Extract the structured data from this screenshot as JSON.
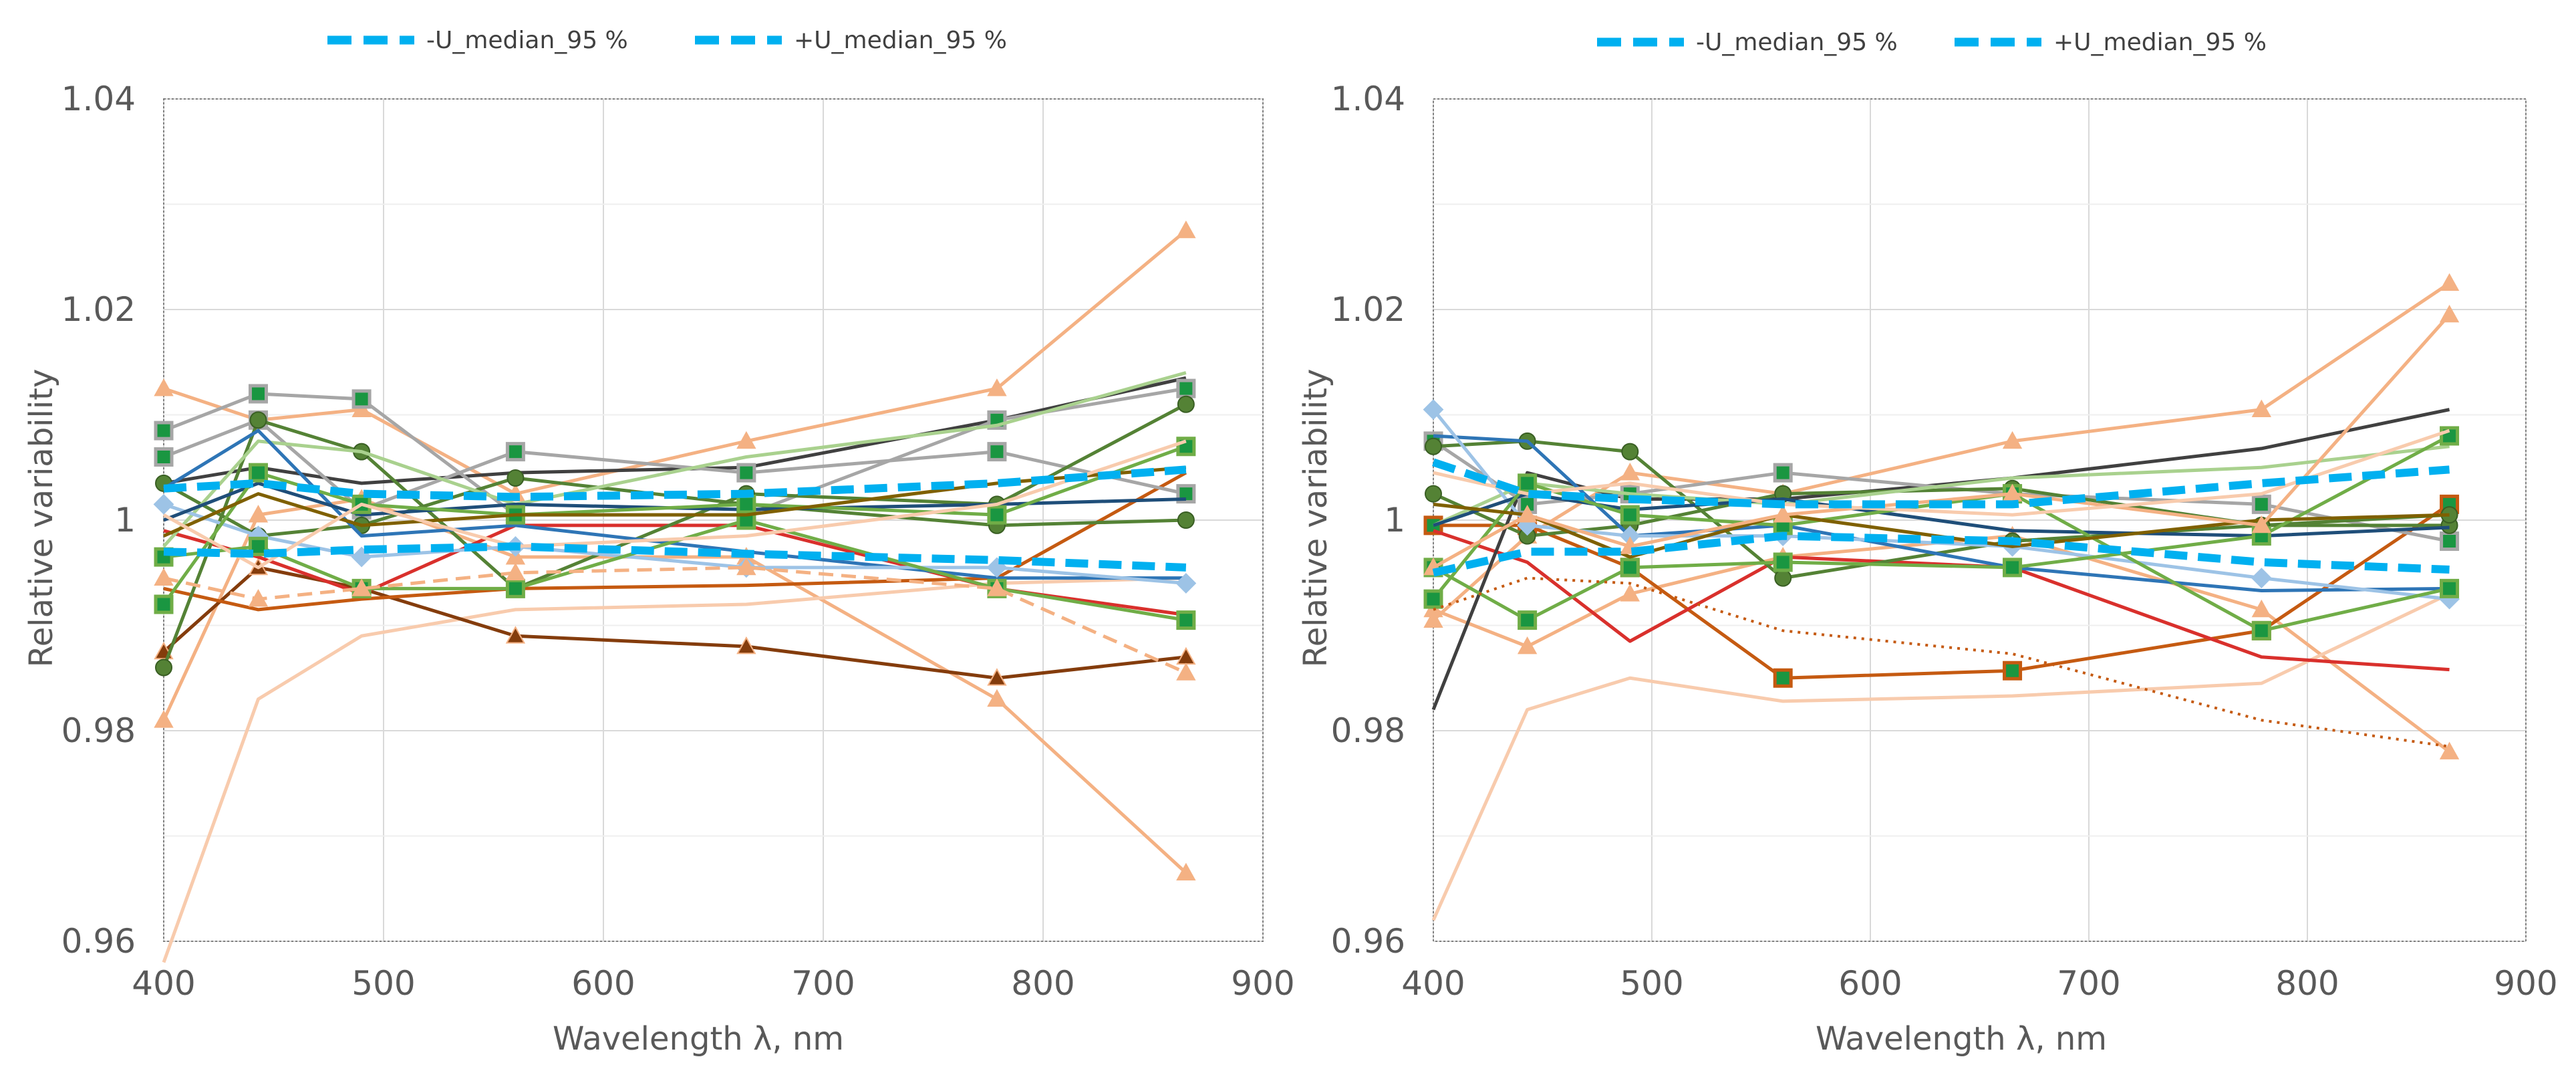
{
  "colors": {
    "median": "#00b0f0",
    "grid": "#d9d9d9",
    "frame": "#7f7f7f",
    "palette": [
      "#f4b183",
      "#f8cbad",
      "#c55a11",
      "#843c0c",
      "#d9302c",
      "#404040",
      "#a6a6a6",
      "#548235",
      "#a9d18e",
      "#2e75b6",
      "#9dc3e6",
      "#1f4e79",
      "#ed7d31",
      "#70ad47",
      "#7f6000",
      "#8c8c8c"
    ]
  },
  "chart_data": [
    {
      "type": "line",
      "title": "",
      "xlabel": "Wavelength λ, nm",
      "ylabel": "Relative variability",
      "xlim": [
        400,
        900
      ],
      "ylim": [
        0.96,
        1.04
      ],
      "xticks": [
        400,
        500,
        600,
        700,
        800,
        900
      ],
      "yticks": [
        0.96,
        0.98,
        1,
        1.02,
        1.04
      ],
      "xtick_labels": [
        "400",
        "500",
        "600",
        "700",
        "800",
        "900"
      ],
      "ytick_labels": [
        "0.96",
        "0.98",
        "1",
        "1.02",
        "1.04"
      ],
      "grid": true,
      "legend": [
        "-U_median_95 %",
        "+U_median_95 %"
      ],
      "legend_position": "top",
      "x": [
        400,
        443,
        490,
        560,
        665,
        779,
        865
      ],
      "median_lower": [
        0.997,
        0.9968,
        0.9972,
        0.9975,
        0.9968,
        0.9962,
        0.9955
      ],
      "median_upper": [
        1.003,
        1.0035,
        1.0025,
        1.0022,
        1.0025,
        1.0035,
        1.0048
      ],
      "series": [
        {
          "color": "#f4b183",
          "marker": "triangle",
          "values": [
            1.0125,
            1.0095,
            1.0105,
            1.0025,
            1.0075,
            1.0125,
            1.0275
          ]
        },
        {
          "color": "#f4b183",
          "marker": "triangle",
          "values": [
            0.981,
            1.0005,
            1.002,
            0.9965,
            0.9965,
            0.983,
            0.9665
          ]
        },
        {
          "color": "#f8cbad",
          "marker": "none",
          "values": [
            0.958,
            0.983,
            0.989,
            0.9915,
            0.992,
            0.994,
            0.9945
          ]
        },
        {
          "color": "#843c0c",
          "marker": "triangle",
          "values": [
            0.9875,
            0.9955,
            0.9935,
            0.989,
            0.988,
            0.985,
            0.987
          ]
        },
        {
          "color": "#d9302c",
          "marker": "none",
          "values": [
            0.999,
            0.9965,
            0.993,
            0.9995,
            0.9995,
            0.9935,
            0.991
          ]
        },
        {
          "color": "#c55a11",
          "marker": "none",
          "values": [
            0.9935,
            0.9915,
            0.9925,
            0.9935,
            0.9938,
            0.9945,
            1.0045
          ]
        },
        {
          "color": "#404040",
          "marker": "none",
          "values": [
            1.0035,
            1.005,
            1.0035,
            1.0045,
            1.005,
            1.0095,
            1.0135
          ]
        },
        {
          "color": "#a6a6a6",
          "marker": "square",
          "values": [
            1.0085,
            1.012,
            1.0115,
            1.0005,
            1.0005,
            1.0095,
            1.0125
          ]
        },
        {
          "color": "#a6a6a6",
          "marker": "square",
          "values": [
            1.006,
            1.0095,
            1.001,
            1.0065,
            1.0045,
            1.0065,
            1.0025
          ]
        },
        {
          "color": "#548235",
          "marker": "circle",
          "values": [
            0.986,
            1.0095,
            1.0065,
            0.9935,
            1.0025,
            1.0015,
            1.011
          ]
        },
        {
          "color": "#548235",
          "marker": "circle",
          "values": [
            1.0035,
            0.9985,
            0.9995,
            1.004,
            1.0015,
            0.9995,
            1.0
          ]
        },
        {
          "color": "#a9d18e",
          "marker": "none",
          "values": [
            0.9975,
            1.0075,
            1.0065,
            1.0015,
            1.006,
            1.009,
            1.014
          ]
        },
        {
          "color": "#2e75b6",
          "marker": "none",
          "values": [
            1.003,
            1.0085,
            0.9985,
            0.9995,
            0.997,
            0.9945,
            0.9945
          ]
        },
        {
          "color": "#9dc3e6",
          "marker": "diamond",
          "values": [
            1.0015,
            0.9985,
            0.9965,
            0.9975,
            0.9955,
            0.9955,
            0.994
          ]
        },
        {
          "color": "#1f4e79",
          "marker": "none",
          "values": [
            1.0,
            1.0035,
            1.0005,
            1.0015,
            1.001,
            1.0015,
            1.002
          ]
        },
        {
          "color": "#70ad47",
          "marker": "square",
          "values": [
            0.992,
            1.0045,
            1.0015,
            1.0005,
            1.0015,
            1.0005,
            1.007
          ]
        },
        {
          "color": "#70ad47",
          "marker": "square",
          "values": [
            0.9965,
            0.9975,
            0.9935,
            0.9935,
            1.0,
            0.9935,
            0.9905
          ]
        },
        {
          "color": "#7f6000",
          "marker": "none",
          "values": [
            0.9985,
            1.0025,
            0.9995,
            1.0005,
            1.0005,
            1.0035,
            1.005
          ]
        },
        {
          "color": "#f4b183",
          "marker": "triangle",
          "dash": true,
          "values": [
            0.9945,
            0.9925,
            0.9935,
            0.995,
            0.9955,
            0.9935,
            0.9855
          ]
        },
        {
          "color": "#f8cbad",
          "marker": "none",
          "values": [
            1.0005,
            0.9955,
            1.0015,
            0.9975,
            0.9985,
            1.0015,
            1.0075
          ]
        }
      ]
    },
    {
      "type": "line",
      "title": "",
      "xlabel": "Wavelength λ, nm",
      "ylabel": "Relative variability",
      "xlim": [
        400,
        900
      ],
      "ylim": [
        0.96,
        1.04
      ],
      "xticks": [
        400,
        500,
        600,
        700,
        800,
        900
      ],
      "yticks": [
        0.96,
        0.98,
        1,
        1.02,
        1.04
      ],
      "xtick_labels": [
        "400",
        "500",
        "600",
        "700",
        "800",
        "900"
      ],
      "ytick_labels": [
        "0.96",
        "0.98",
        "1",
        "1.02",
        "1.04"
      ],
      "grid": true,
      "legend": [
        "-U_median_95 %",
        "+U_median_95 %"
      ],
      "legend_position": "top",
      "x": [
        400,
        443,
        490,
        560,
        665,
        779,
        865
      ],
      "median_lower": [
        0.995,
        0.997,
        0.997,
        0.9985,
        0.998,
        0.996,
        0.9953
      ],
      "median_upper": [
        1.0055,
        1.0025,
        1.002,
        1.0015,
        1.0015,
        1.0035,
        1.0048
      ],
      "series": [
        {
          "color": "#f4b183",
          "marker": "triangle",
          "values": [
            0.9905,
            0.9985,
            1.0045,
            1.0025,
            1.0075,
            1.0105,
            1.0225
          ]
        },
        {
          "color": "#f4b183",
          "marker": "triangle",
          "values": [
            0.9915,
            0.988,
            0.993,
            0.9965,
            0.9985,
            0.9915,
            0.978
          ]
        },
        {
          "color": "#f8cbad",
          "marker": "none",
          "values": [
            0.962,
            0.982,
            0.985,
            0.9828,
            0.9833,
            0.9845,
            0.993
          ]
        },
        {
          "color": "#c55a11",
          "marker": "square",
          "values": [
            0.9995,
            0.9995,
            0.9955,
            0.985,
            0.9857,
            0.9895,
            1.0015
          ]
        },
        {
          "color": "#d9302c",
          "marker": "none",
          "values": [
            0.999,
            0.996,
            0.9885,
            0.9965,
            0.9955,
            0.987,
            0.9858
          ]
        },
        {
          "color": "#404040",
          "marker": "none",
          "values": [
            0.982,
            1.0045,
            1.002,
            1.002,
            1.004,
            1.0068,
            1.0105
          ]
        },
        {
          "color": "#a6a6a6",
          "marker": "square",
          "values": [
            1.0075,
            1.0015,
            1.0025,
            1.0045,
            1.0025,
            1.0015,
            0.998
          ]
        },
        {
          "color": "#548235",
          "marker": "circle",
          "values": [
            1.007,
            1.0075,
            1.0065,
            0.9945,
            0.998,
            0.9995,
            0.9995
          ]
        },
        {
          "color": "#548235",
          "marker": "circle",
          "values": [
            1.0025,
            0.9985,
            0.9995,
            1.0025,
            1.003,
            0.9995,
            1.0005
          ]
        },
        {
          "color": "#a9d18e",
          "marker": "none",
          "values": [
            0.9995,
            1.0035,
            1.0025,
            1.0015,
            1.004,
            1.005,
            1.007
          ]
        },
        {
          "color": "#2e75b6",
          "marker": "none",
          "values": [
            1.008,
            1.0075,
            0.9985,
            0.9995,
            0.9955,
            0.9933,
            0.9935
          ]
        },
        {
          "color": "#9dc3e6",
          "marker": "diamond",
          "values": [
            1.0105,
            0.9995,
            0.9985,
            0.9985,
            0.9975,
            0.9945,
            0.9925
          ]
        },
        {
          "color": "#1f4e79",
          "marker": "none",
          "values": [
            0.9995,
            1.0025,
            1.001,
            1.002,
            0.999,
            0.9985,
            0.9993
          ]
        },
        {
          "color": "#70ad47",
          "marker": "square",
          "values": [
            0.9955,
            0.9905,
            0.9955,
            0.996,
            0.9955,
            0.9985,
            1.008
          ]
        },
        {
          "color": "#70ad47",
          "marker": "square",
          "values": [
            0.9925,
            1.0035,
            1.0005,
            0.9995,
            1.0025,
            0.9895,
            0.9935
          ]
        },
        {
          "color": "#7f6000",
          "marker": "none",
          "values": [
            1.0015,
            1.0005,
            0.9965,
            1.0005,
            0.9975,
            1.0,
            1.0005
          ]
        },
        {
          "color": "#c55a11",
          "marker": "none",
          "dots": true,
          "values": [
            0.9915,
            0.9945,
            0.994,
            0.9895,
            0.9873,
            0.981,
            0.9785
          ]
        },
        {
          "color": "#f4b183",
          "marker": "triangle",
          "values": [
            0.9955,
            1.0005,
            0.9975,
            1.0005,
            1.0025,
            0.9995,
            1.0195
          ]
        },
        {
          "color": "#f8cbad",
          "marker": "none",
          "values": [
            1.0045,
            1.0025,
            1.0035,
            1.0015,
            1.0005,
            1.0025,
            1.0085
          ]
        }
      ]
    }
  ]
}
